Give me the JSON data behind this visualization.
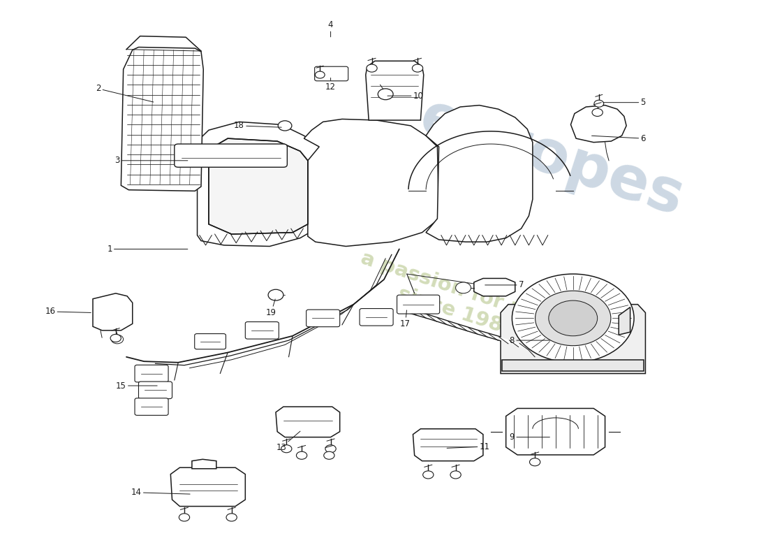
{
  "background_color": "#ffffff",
  "line_color": "#1a1a1a",
  "wm_color1": "#b8c8d8",
  "wm_color2": "#c8d4a8",
  "fig_w": 11.0,
  "fig_h": 8.0,
  "dpi": 100,
  "labels": [
    [
      1,
      0.245,
      0.555,
      0.14,
      0.555
    ],
    [
      2,
      0.2,
      0.82,
      0.125,
      0.845
    ],
    [
      3,
      0.245,
      0.715,
      0.15,
      0.715
    ],
    [
      4,
      0.43,
      0.935,
      0.43,
      0.96
    ],
    [
      5,
      0.785,
      0.82,
      0.84,
      0.82
    ],
    [
      6,
      0.77,
      0.76,
      0.84,
      0.755
    ],
    [
      7,
      0.63,
      0.49,
      0.68,
      0.49
    ],
    [
      8,
      0.72,
      0.39,
      0.668,
      0.39
    ],
    [
      9,
      0.72,
      0.215,
      0.668,
      0.215
    ],
    [
      10,
      0.502,
      0.832,
      0.545,
      0.832
    ],
    [
      11,
      0.58,
      0.195,
      0.632,
      0.198
    ],
    [
      12,
      0.43,
      0.868,
      0.43,
      0.848
    ],
    [
      13,
      0.392,
      0.228,
      0.365,
      0.196
    ],
    [
      14,
      0.248,
      0.112,
      0.175,
      0.115
    ],
    [
      15,
      0.205,
      0.308,
      0.155,
      0.308
    ],
    [
      16,
      0.118,
      0.44,
      0.062,
      0.442
    ],
    [
      17,
      0.53,
      0.448,
      0.528,
      0.42
    ],
    [
      18,
      0.368,
      0.775,
      0.31,
      0.778
    ],
    [
      19,
      0.358,
      0.468,
      0.352,
      0.44
    ]
  ]
}
